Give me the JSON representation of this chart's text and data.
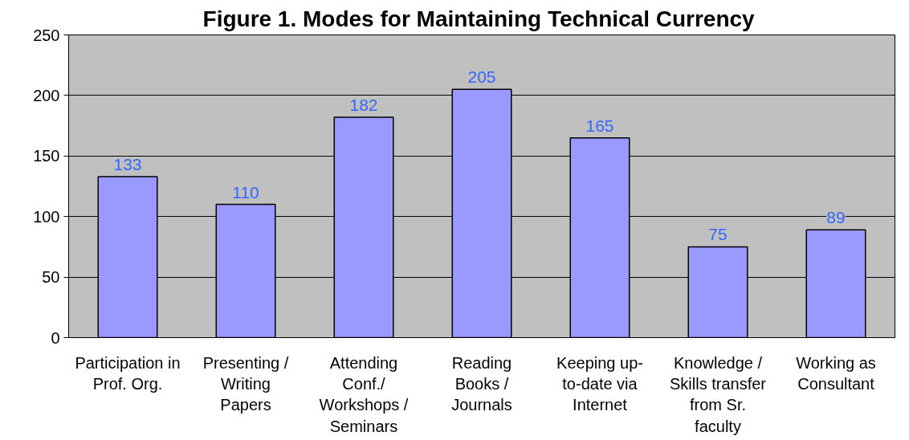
{
  "chart_data": {
    "type": "bar",
    "title": "Figure 1.  Modes for Maintaining Technical Currency",
    "categories": [
      "Participation in\nProf. Org.",
      "Presenting /\nWriting\nPapers",
      "Attending\nConf./\nWorkshops /\nSeminars",
      "Reading\nBooks /\nJournals",
      "Keeping up-\nto-date via\nInternet",
      "Knowledge /\nSkills transfer\nfrom Sr.\nfaculty",
      "Working as\nConsultant"
    ],
    "values": [
      133,
      110,
      182,
      205,
      165,
      75,
      89
    ],
    "color": "#9999ff",
    "ylim": [
      0,
      250
    ],
    "yticks": [
      0,
      50,
      100,
      150,
      200,
      250
    ],
    "grid": "y",
    "data_labels": true
  }
}
